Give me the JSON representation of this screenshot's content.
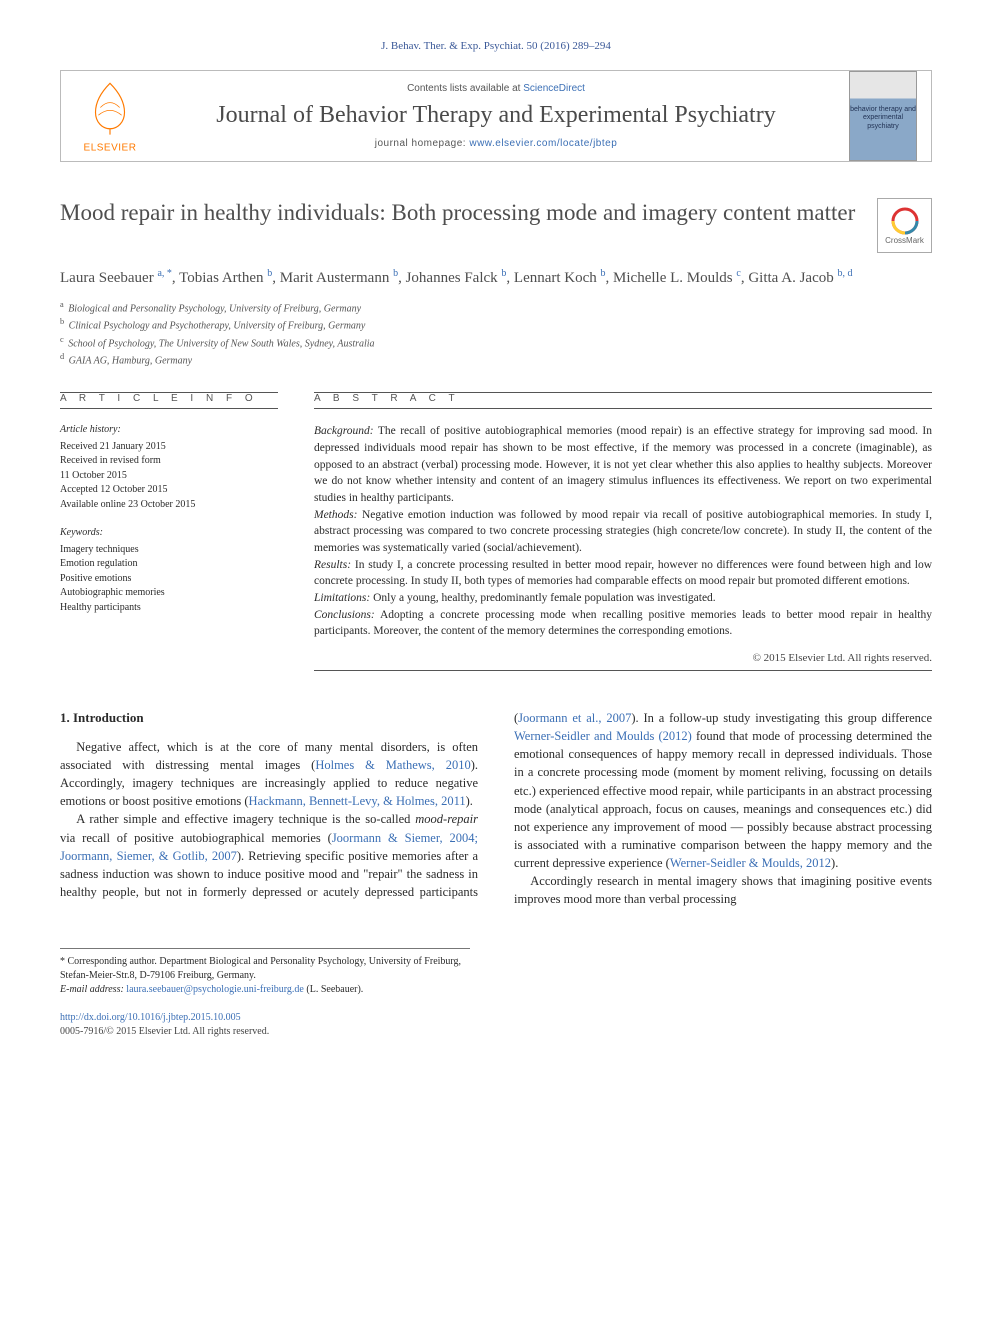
{
  "journal_ref": "J. Behav. Ther. & Exp. Psychiat. 50 (2016) 289–294",
  "contents_line_pre": "Contents lists available at ",
  "contents_line_link": "ScienceDirect",
  "journal_name": "Journal of Behavior Therapy and Experimental Psychiatry",
  "homepage_pre": "journal homepage: ",
  "homepage_link": "www.elsevier.com/locate/jbtep",
  "elsevier_label": "ELSEVIER",
  "cover_thumb_text": "behavior\ntherapy\nand\nexperimental\npsychiatry",
  "crossmark_label": "CrossMark",
  "title": "Mood repair in healthy individuals: Both processing mode and imagery content matter",
  "authors": [
    {
      "name": "Laura Seebauer",
      "aff": "a, *"
    },
    {
      "name": "Tobias Arthen",
      "aff": "b"
    },
    {
      "name": "Marit Austermann",
      "aff": "b"
    },
    {
      "name": "Johannes Falck",
      "aff": "b"
    },
    {
      "name": "Lennart Koch",
      "aff": "b"
    },
    {
      "name": "Michelle L. Moulds",
      "aff": "c"
    },
    {
      "name": "Gitta A. Jacob",
      "aff": "b, d"
    }
  ],
  "affiliations": [
    {
      "sup": "a",
      "text": "Biological and Personality Psychology, University of Freiburg, Germany"
    },
    {
      "sup": "b",
      "text": "Clinical Psychology and Psychotherapy, University of Freiburg, Germany"
    },
    {
      "sup": "c",
      "text": "School of Psychology, The University of New South Wales, Sydney, Australia"
    },
    {
      "sup": "d",
      "text": "GAIA AG, Hamburg, Germany"
    }
  ],
  "article_info_label": "A R T I C L E  I N F O",
  "abstract_label": "A B S T R A C T",
  "history_label": "Article history:",
  "history": [
    "Received 21 January 2015",
    "Received in revised form",
    "11 October 2015",
    "Accepted 12 October 2015",
    "Available online 23 October 2015"
  ],
  "keywords_label": "Keywords:",
  "keywords": [
    "Imagery techniques",
    "Emotion regulation",
    "Positive emotions",
    "Autobiographic memories",
    "Healthy participants"
  ],
  "abstract": {
    "background_label": "Background:",
    "background": "The recall of positive autobiographical memories (mood repair) is an effective strategy for improving sad mood. In depressed individuals mood repair has shown to be most effective, if the memory was processed in a concrete (imaginable), as opposed to an abstract (verbal) processing mode. However, it is not yet clear whether this also applies to healthy subjects. Moreover we do not know whether intensity and content of an imagery stimulus influences its effectiveness. We report on two experimental studies in healthy participants.",
    "methods_label": "Methods:",
    "methods": "Negative emotion induction was followed by mood repair via recall of positive autobiographical memories. In study I, abstract processing was compared to two concrete processing strategies (high concrete/low concrete). In study II, the content of the memories was systematically varied (social/achievement).",
    "results_label": "Results:",
    "results": "In study I, a concrete processing resulted in better mood repair, however no differences were found between high and low concrete processing. In study II, both types of memories had comparable effects on mood repair but promoted different emotions.",
    "limitations_label": "Limitations:",
    "limitations": "Only a young, healthy, predominantly female population was investigated.",
    "conclusions_label": "Conclusions:",
    "conclusions": "Adopting a concrete processing mode when recalling positive memories leads to better mood repair in healthy participants. Moreover, the content of the memory determines the corresponding emotions."
  },
  "copyright": "© 2015 Elsevier Ltd. All rights reserved.",
  "intro_heading": "1. Introduction",
  "intro_p1a": "Negative affect, which is at the core of many mental disorders, is often associated with distressing mental images (",
  "intro_p1_cite1": "Holmes & Mathews, 2010",
  "intro_p1b": "). Accordingly, imagery techniques are increasingly applied to reduce negative emotions or boost positive emotions (",
  "intro_p1_cite2": "Hackmann, Bennett-Levy, & Holmes, 2011",
  "intro_p1c": ").",
  "intro_p2a": "A rather simple and effective imagery technique is the so-called ",
  "intro_p2_ital": "mood-repair",
  "intro_p2b": " via recall of positive autobiographical memories (",
  "intro_p2_cite1": "Joormann & Siemer, 2004; Joormann, Siemer, & Gotlib, 2007",
  "intro_p2c": "). Retrieving specific positive memories after a sadness induction was ",
  "intro_p2d": "shown to induce positive mood and \"repair\" the sadness in healthy people, but not in formerly depressed or acutely depressed participants (",
  "intro_p2_cite2": "Joormann et al., 2007",
  "intro_p2e": "). In a follow-up study investigating this group difference ",
  "intro_p2_cite3": "Werner-Seidler and Moulds (2012)",
  "intro_p2f": " found that mode of processing determined the emotional consequences of happy memory recall in depressed individuals. Those in a concrete processing mode (moment by moment reliving, focussing on details etc.) experienced effective mood repair, while participants in an abstract processing mode (analytical approach, focus on causes, meanings and consequences etc.) did not experience any improvement of mood — possibly because abstract processing is associated with a ruminative comparison between the happy memory and the current depressive experience (",
  "intro_p2_cite4": "Werner-Seidler & Moulds, 2012",
  "intro_p2g": ").",
  "intro_p3a": "Accordingly research in mental imagery shows that imagining positive events improves mood more than verbal processing",
  "footnote_corr": "* Corresponding author. Department Biological and Personality Psychology, University of Freiburg, Stefan-Meier-Str.8, D-79106 Freiburg, Germany.",
  "footnote_email_label": "E-mail address:",
  "footnote_email": "laura.seebauer@psychologie.uni-freiburg.de",
  "footnote_email_who": "(L. Seebauer).",
  "doi": "http://dx.doi.org/10.1016/j.jbtep.2015.10.005",
  "issn_line": "0005-7916/© 2015 Elsevier Ltd. All rights reserved.",
  "colors": {
    "link": "#3b6fb5",
    "orange": "#ff7a00",
    "text": "#2a2a2a"
  }
}
